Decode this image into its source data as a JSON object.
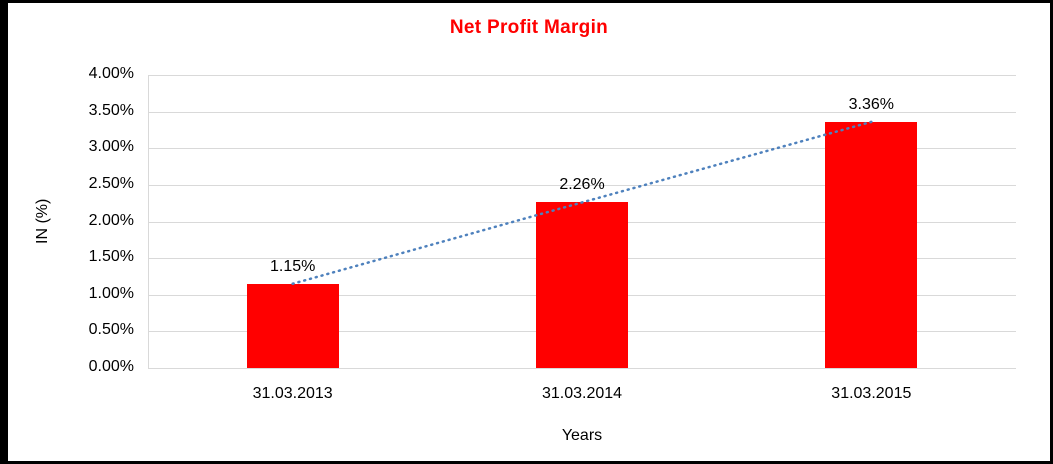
{
  "chart_data": {
    "type": "bar",
    "title": "Net Profit Margin",
    "categories": [
      "31.03.2013",
      "31.03.2014",
      "31.03.2015"
    ],
    "values": [
      1.15,
      2.26,
      3.36
    ],
    "value_labels": [
      "1.15%",
      "2.26%",
      "3.36%"
    ],
    "xlabel": "Years",
    "ylabel": "IN (%)",
    "ylim": [
      0,
      4
    ],
    "ytick_labels": [
      "0.00%",
      "0.50%",
      "1.00%",
      "1.50%",
      "2.00%",
      "2.50%",
      "3.00%",
      "3.50%",
      "4.00%"
    ],
    "grid": true,
    "legend": "none",
    "bar_color": "#ff0000",
    "title_color": "#ff0000",
    "trendline": {
      "type": "linear",
      "style": "dotted",
      "color": "#4e81bd"
    }
  }
}
